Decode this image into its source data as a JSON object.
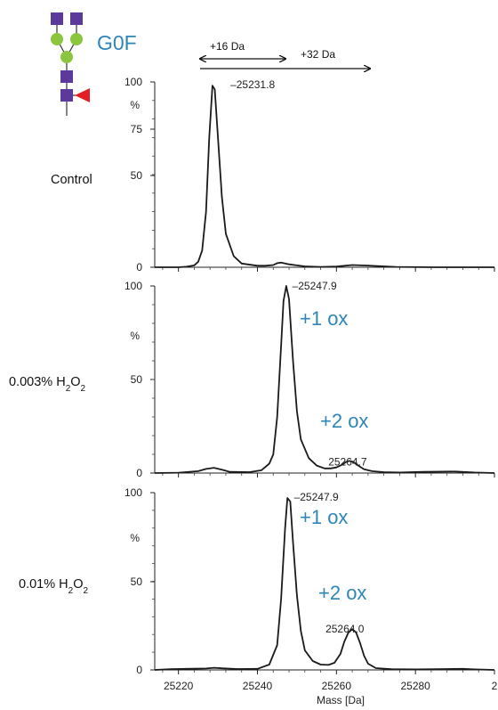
{
  "colors": {
    "accent": "#2e86b7",
    "glcnac": "#5b3a9b",
    "mannose": "#8cc63f",
    "fucose": "#e31e24",
    "trace": "#1a1a1a"
  },
  "glycan": {
    "label": "G0F"
  },
  "mass_shifts": [
    {
      "label": "+16 Da"
    },
    {
      "label": "+32 Da"
    }
  ],
  "xaxis": {
    "title": "Mass [Da]",
    "tick_labels": [
      "25220",
      "25240",
      "25260",
      "25280",
      "2"
    ]
  },
  "chart_data": [
    {
      "type": "line",
      "panel_label": "Control",
      "yticks": [
        "100",
        "75",
        "50",
        "0"
      ],
      "y_unit": "%",
      "xlim": [
        25214,
        25300
      ],
      "ylim": [
        0,
        100
      ],
      "x": [
        25214,
        25220,
        25222,
        25224,
        25225,
        25226,
        25227,
        25227.8,
        25228.6,
        25229.2,
        25230,
        25231,
        25232,
        25234,
        25236,
        25240,
        25242,
        25244,
        25245,
        25246,
        25248,
        25250,
        25252,
        25256,
        25260,
        25264,
        25268,
        25275,
        25285,
        25300
      ],
      "y": [
        0,
        0,
        0.3,
        1,
        3,
        9,
        30,
        70,
        98,
        96,
        70,
        38,
        18,
        6,
        2,
        0.8,
        0.8,
        1.2,
        2.2,
        2.5,
        1.6,
        1,
        0.5,
        0.2,
        0.4,
        1.2,
        0.9,
        0.2,
        0,
        0
      ],
      "peaks": [
        {
          "x": 25231.8,
          "y": 98,
          "label": "25231.8"
        }
      ],
      "annotations": []
    },
    {
      "type": "line",
      "panel_label": "0.003% H₂O₂",
      "yticks": [
        "100",
        "50",
        "0"
      ],
      "y_unit": "%",
      "xlim": [
        25214,
        25300
      ],
      "ylim": [
        0,
        100
      ],
      "x": [
        25214,
        25220,
        25225,
        25227,
        25229,
        25231,
        25233,
        25238,
        25241,
        25243,
        25244,
        25245,
        25246,
        25246.6,
        25247.3,
        25248,
        25249,
        25250,
        25251,
        25253,
        25255,
        25257,
        25258.5,
        25260,
        25261.5,
        25262.5,
        25263.3,
        25264.2,
        25265.5,
        25267,
        25269,
        25272,
        25276,
        25282,
        25290,
        25295,
        25300
      ],
      "y": [
        0,
        0.2,
        1,
        2.2,
        2.8,
        1.8,
        0.6,
        0.5,
        1.5,
        5,
        10,
        30,
        68,
        92,
        100,
        93,
        60,
        33,
        18,
        8,
        4,
        2.5,
        2.5,
        3,
        4.5,
        6,
        6.5,
        6,
        4,
        2,
        1,
        0.5,
        0.3,
        0.6,
        0.8,
        0.3,
        0
      ],
      "peaks": [
        {
          "x": 25247.9,
          "y": 100,
          "label": "25247.9"
        },
        {
          "x": 25264.7,
          "y": 6.5,
          "label": "25264.7"
        }
      ],
      "annotations": [
        "+1 ox",
        "+2 ox"
      ]
    },
    {
      "type": "line",
      "panel_label": "0.01% H₂O₂",
      "yticks": [
        "100",
        "50",
        "0"
      ],
      "y_unit": "%",
      "xlim": [
        25214,
        25300
      ],
      "ylim": [
        0,
        100
      ],
      "x": [
        25214,
        25218,
        25222,
        25227,
        25229,
        25231,
        25235,
        25240,
        25243,
        25245,
        25246,
        25247,
        25247.6,
        25248.3,
        25249,
        25250,
        25251,
        25252,
        25254,
        25256,
        25258,
        25259.5,
        25261,
        25262,
        25263,
        25264,
        25265,
        25266,
        25267,
        25268,
        25270,
        25274,
        25280,
        25288,
        25292,
        25295,
        25300
      ],
      "y": [
        0,
        0.4,
        0.6,
        0.8,
        1.2,
        0.9,
        0.5,
        0.6,
        3,
        14,
        40,
        80,
        97,
        95,
        72,
        42,
        22,
        11,
        5,
        3,
        2.8,
        4,
        9,
        16,
        21,
        23,
        21,
        15,
        8,
        3.5,
        1,
        0.4,
        0.3,
        0.5,
        0.6,
        0.3,
        0
      ],
      "peaks": [
        {
          "x": 25247.9,
          "y": 98,
          "label": "25247.9"
        },
        {
          "x": 25264.0,
          "y": 23,
          "label": "25264.0"
        }
      ],
      "annotations": [
        "+1 ox",
        "+2 ox"
      ]
    }
  ]
}
